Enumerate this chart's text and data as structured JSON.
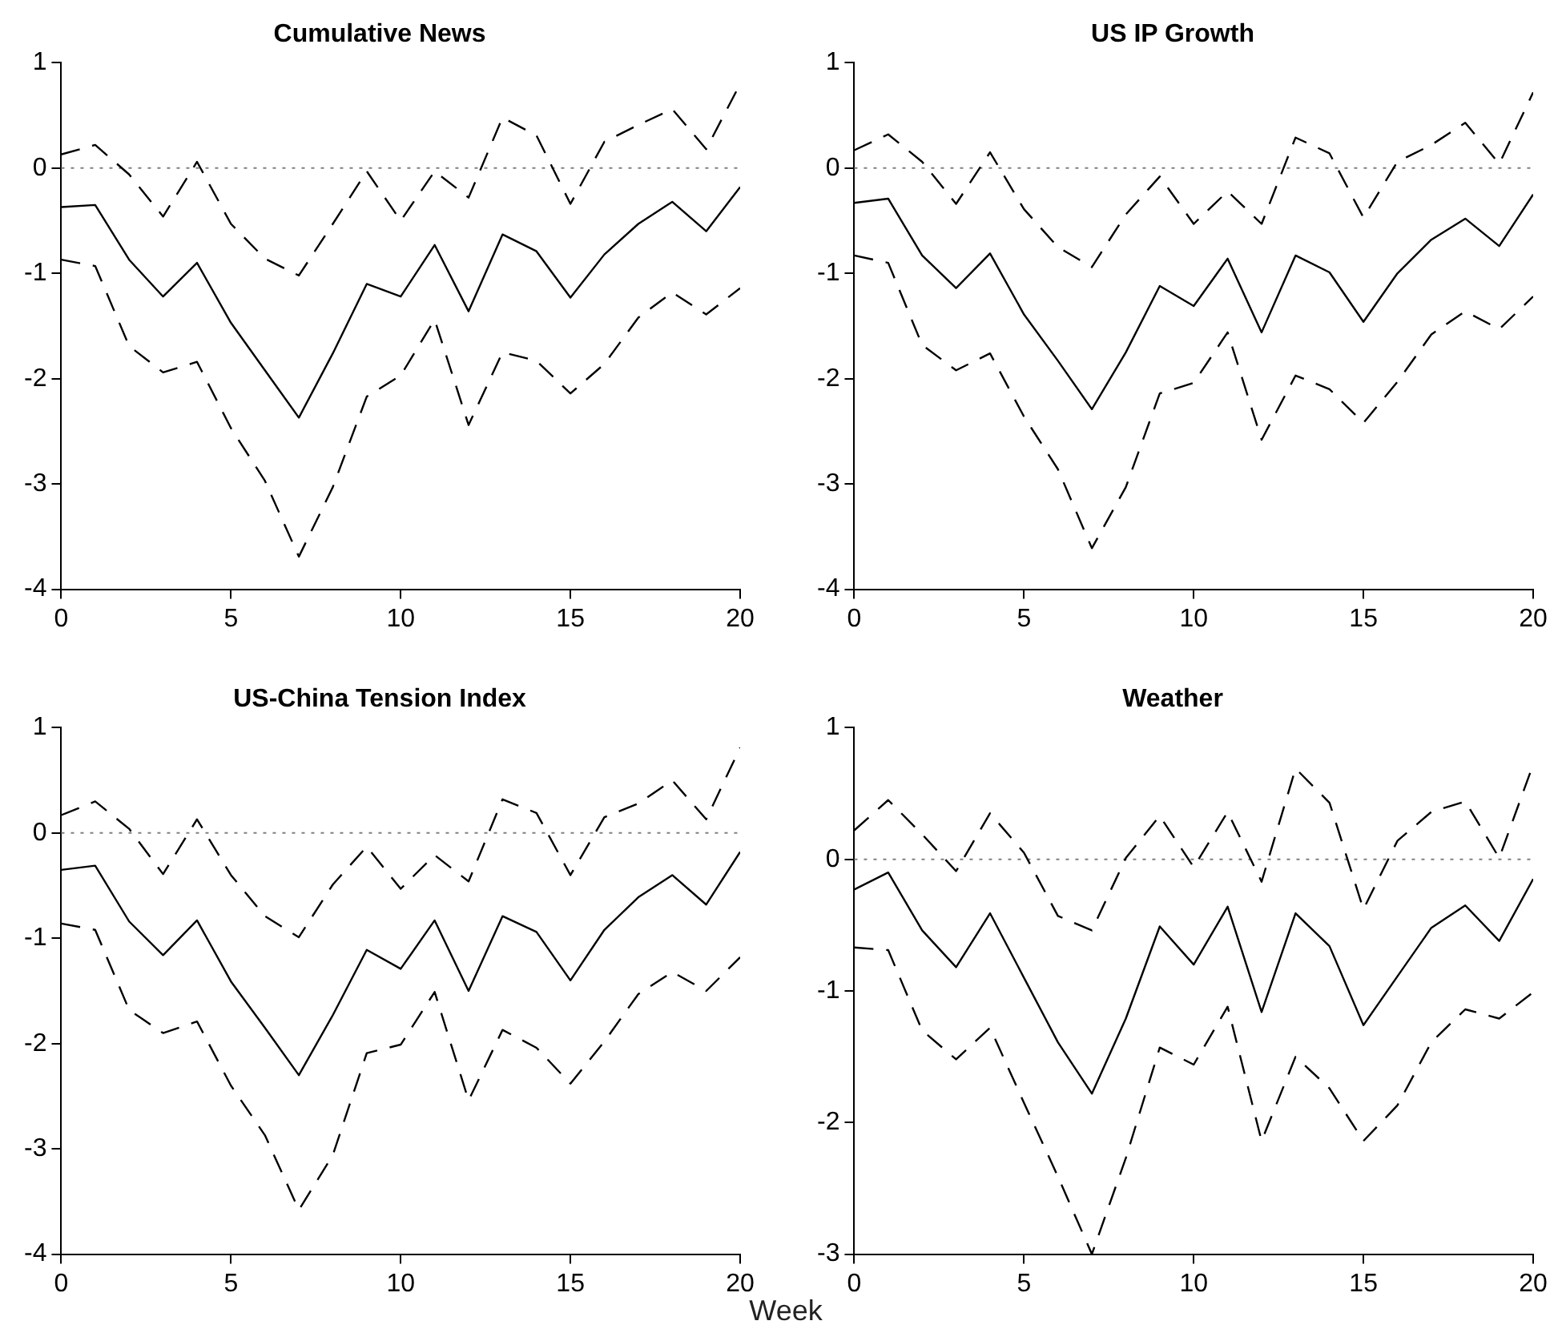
{
  "chart_data": [
    {
      "type": "line",
      "title": "Cumulative News",
      "x": [
        0,
        1,
        2,
        3,
        4,
        5,
        6,
        7,
        8,
        9,
        10,
        11,
        12,
        13,
        14,
        15,
        16,
        17,
        18,
        19,
        20
      ],
      "xlim": [
        0,
        20
      ],
      "xticks": [
        0,
        5,
        10,
        15,
        20
      ],
      "ylim": [
        -4,
        1
      ],
      "yticks": [
        -4,
        -3,
        -2,
        -1,
        0,
        1
      ],
      "grid": false,
      "legend": false,
      "marker": "none",
      "series": [
        {
          "color": "#000000",
          "line_style": "solid",
          "values": [
            -0.37,
            -0.35,
            -0.87,
            -1.22,
            -0.9,
            -1.47,
            -1.92,
            -2.37,
            -1.76,
            -1.1,
            -1.22,
            -0.73,
            -1.36,
            -0.63,
            -0.79,
            -1.23,
            -0.82,
            -0.53,
            -0.32,
            -0.6,
            -0.18
          ]
        },
        {
          "color": "#000000",
          "line_style": "dashed",
          "values": [
            0.13,
            0.22,
            -0.06,
            -0.46,
            0.06,
            -0.53,
            -0.86,
            -1.02,
            -0.53,
            -0.03,
            -0.5,
            -0.03,
            -0.28,
            0.48,
            0.31,
            -0.34,
            0.25,
            0.41,
            0.56,
            0.18,
            0.8
          ]
        },
        {
          "color": "#000000",
          "line_style": "dashed",
          "values": [
            -0.87,
            -0.93,
            -1.69,
            -1.94,
            -1.84,
            -2.47,
            -2.97,
            -3.69,
            -3.03,
            -2.17,
            -1.97,
            -1.44,
            -2.44,
            -1.75,
            -1.83,
            -2.14,
            -1.86,
            -1.42,
            -1.18,
            -1.39,
            -1.14
          ]
        }
      ],
      "ref_lines": [
        {
          "axis": "y",
          "value": 0,
          "color": "#808080",
          "line_style": "dotted"
        }
      ]
    },
    {
      "type": "line",
      "title": "US IP Growth",
      "x": [
        0,
        1,
        2,
        3,
        4,
        5,
        6,
        7,
        8,
        9,
        10,
        11,
        12,
        13,
        14,
        15,
        16,
        17,
        18,
        19,
        20
      ],
      "xlim": [
        0,
        20
      ],
      "xticks": [
        0,
        5,
        10,
        15,
        20
      ],
      "ylim": [
        -4,
        1
      ],
      "yticks": [
        -4,
        -3,
        -2,
        -1,
        0,
        1
      ],
      "grid": false,
      "legend": false,
      "marker": "none",
      "series": [
        {
          "color": "#000000",
          "line_style": "solid",
          "values": [
            -0.33,
            -0.29,
            -0.83,
            -1.14,
            -0.81,
            -1.39,
            -1.83,
            -2.29,
            -1.75,
            -1.12,
            -1.31,
            -0.86,
            -1.56,
            -0.83,
            -0.99,
            -1.46,
            -1.0,
            -0.68,
            -0.48,
            -0.74,
            -0.25
          ]
        },
        {
          "color": "#000000",
          "line_style": "dashed",
          "values": [
            0.17,
            0.32,
            0.06,
            -0.34,
            0.15,
            -0.39,
            -0.75,
            -0.94,
            -0.44,
            -0.08,
            -0.53,
            -0.22,
            -0.53,
            0.29,
            0.14,
            -0.47,
            0.06,
            0.22,
            0.43,
            0.04,
            0.72
          ]
        },
        {
          "color": "#000000",
          "line_style": "dashed",
          "values": [
            -0.83,
            -0.9,
            -1.68,
            -1.92,
            -1.76,
            -2.36,
            -2.86,
            -3.61,
            -3.03,
            -2.14,
            -2.04,
            -1.56,
            -2.58,
            -1.97,
            -2.1,
            -2.42,
            -2.03,
            -1.58,
            -1.36,
            -1.53,
            -1.22
          ]
        }
      ],
      "ref_lines": [
        {
          "axis": "y",
          "value": 0,
          "color": "#808080",
          "line_style": "dotted"
        }
      ]
    },
    {
      "type": "line",
      "title": "US-China Tension Index",
      "xlabel": "Week",
      "x": [
        0,
        1,
        2,
        3,
        4,
        5,
        6,
        7,
        8,
        9,
        10,
        11,
        12,
        13,
        14,
        15,
        16,
        17,
        18,
        19,
        20
      ],
      "xlim": [
        0,
        20
      ],
      "xticks": [
        0,
        5,
        10,
        15,
        20
      ],
      "ylim": [
        -4,
        1
      ],
      "yticks": [
        -4,
        -3,
        -2,
        -1,
        0,
        1
      ],
      "grid": false,
      "legend": false,
      "marker": "none",
      "series": [
        {
          "color": "#000000",
          "line_style": "solid",
          "values": [
            -0.35,
            -0.31,
            -0.84,
            -1.16,
            -0.83,
            -1.41,
            -1.85,
            -2.3,
            -1.73,
            -1.11,
            -1.29,
            -0.83,
            -1.5,
            -0.79,
            -0.94,
            -1.4,
            -0.92,
            -0.61,
            -0.4,
            -0.68,
            -0.18
          ]
        },
        {
          "color": "#000000",
          "line_style": "dashed",
          "values": [
            0.17,
            0.3,
            0.04,
            -0.39,
            0.13,
            -0.4,
            -0.79,
            -0.99,
            -0.49,
            -0.13,
            -0.53,
            -0.21,
            -0.46,
            0.32,
            0.19,
            -0.4,
            0.15,
            0.28,
            0.5,
            0.13,
            0.81
          ]
        },
        {
          "color": "#000000",
          "line_style": "dashed",
          "values": [
            -0.86,
            -0.92,
            -1.68,
            -1.9,
            -1.79,
            -2.4,
            -2.87,
            -3.58,
            -3.06,
            -2.09,
            -2.01,
            -1.51,
            -2.54,
            -1.87,
            -2.04,
            -2.38,
            -1.98,
            -1.53,
            -1.32,
            -1.5,
            -1.18
          ]
        }
      ],
      "ref_lines": [
        {
          "axis": "y",
          "value": 0,
          "color": "#808080",
          "line_style": "dotted"
        }
      ]
    },
    {
      "type": "line",
      "title": "Weather",
      "x": [
        0,
        1,
        2,
        3,
        4,
        5,
        6,
        7,
        8,
        9,
        10,
        11,
        12,
        13,
        14,
        15,
        16,
        17,
        18,
        19,
        20
      ],
      "xlim": [
        0,
        20
      ],
      "xticks": [
        0,
        5,
        10,
        15,
        20
      ],
      "ylim": [
        -3,
        1
      ],
      "yticks": [
        -3,
        -2,
        -1,
        0,
        1
      ],
      "grid": false,
      "legend": false,
      "marker": "none",
      "series": [
        {
          "color": "#000000",
          "line_style": "solid",
          "values": [
            -0.23,
            -0.1,
            -0.54,
            -0.82,
            -0.41,
            -0.9,
            -1.39,
            -1.78,
            -1.21,
            -0.51,
            -0.8,
            -0.36,
            -1.16,
            -0.41,
            -0.66,
            -1.26,
            -0.89,
            -0.52,
            -0.35,
            -0.62,
            -0.15
          ]
        },
        {
          "color": "#000000",
          "line_style": "dashed",
          "values": [
            0.22,
            0.45,
            0.19,
            -0.09,
            0.35,
            0.05,
            -0.43,
            -0.54,
            0.01,
            0.33,
            -0.06,
            0.36,
            -0.17,
            0.69,
            0.43,
            -0.38,
            0.14,
            0.36,
            0.44,
            0.01,
            0.72
          ]
        },
        {
          "color": "#000000",
          "line_style": "dashed",
          "values": [
            -0.67,
            -0.69,
            -1.3,
            -1.52,
            -1.28,
            -1.85,
            -2.41,
            -3.0,
            -2.27,
            -1.43,
            -1.56,
            -1.12,
            -2.14,
            -1.5,
            -1.74,
            -2.14,
            -1.87,
            -1.39,
            -1.14,
            -1.21,
            -1.01
          ]
        }
      ],
      "ref_lines": [
        {
          "axis": "y",
          "value": 0,
          "color": "#808080",
          "line_style": "dotted"
        }
      ]
    }
  ]
}
